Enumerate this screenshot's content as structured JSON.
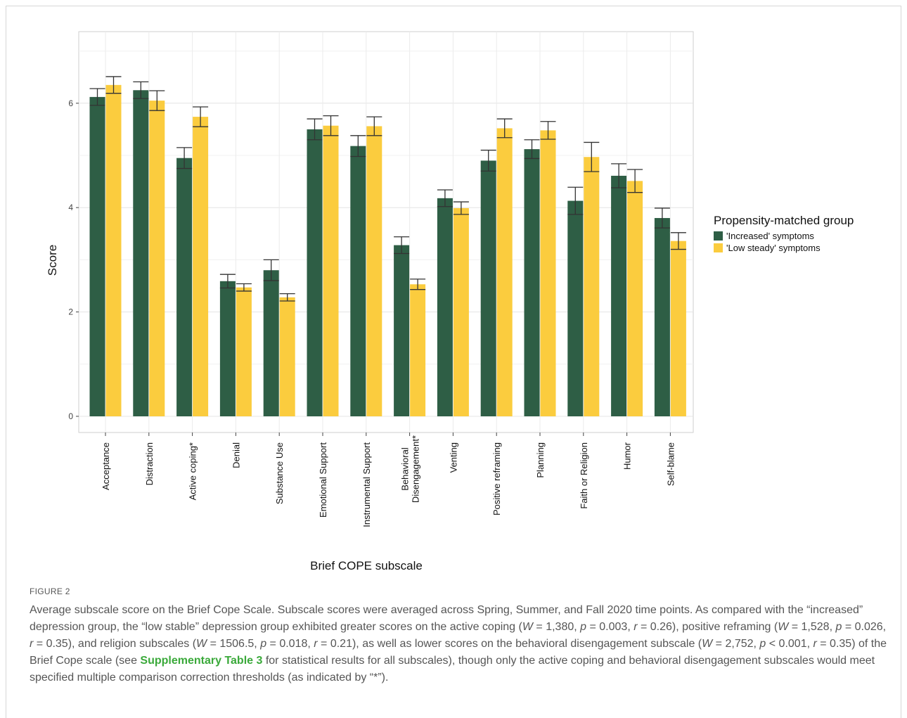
{
  "chart_data": {
    "type": "bar",
    "title": "",
    "xlabel": "Brief COPE subscale",
    "ylabel": "Score",
    "ylim": [
      0,
      7.3
    ],
    "yticks": [
      0,
      2,
      4,
      6
    ],
    "grid": true,
    "legend_position": "right",
    "legend_title": "Propensity-matched group",
    "categories": [
      "Acceptance",
      "Distraction",
      "Active coping*",
      "Denial",
      "Substance Use",
      "Emotional Support",
      "Instrumental Support",
      "Behavioral\nDisengagement*",
      "Venting",
      "Positive reframing",
      "Planning",
      "Faith or Religion",
      "Humor",
      "Self-blame"
    ],
    "series": [
      {
        "name": "'Increased' symptoms",
        "color": "#2e5e45",
        "values": [
          6.12,
          6.25,
          4.95,
          2.59,
          2.8,
          5.5,
          5.18,
          3.28,
          4.18,
          4.9,
          5.12,
          4.13,
          4.61,
          3.8
        ],
        "error": [
          0.16,
          0.16,
          0.2,
          0.13,
          0.2,
          0.2,
          0.2,
          0.16,
          0.16,
          0.2,
          0.18,
          0.26,
          0.23,
          0.19
        ]
      },
      {
        "name": "'Low steady' symptoms",
        "color": "#fbcc3e",
        "values": [
          6.35,
          6.05,
          5.74,
          2.47,
          2.28,
          5.57,
          5.56,
          2.53,
          3.99,
          5.52,
          5.48,
          4.97,
          4.51,
          3.36
        ],
        "error": [
          0.16,
          0.19,
          0.19,
          0.07,
          0.07,
          0.19,
          0.18,
          0.1,
          0.12,
          0.18,
          0.17,
          0.28,
          0.22,
          0.16
        ]
      }
    ]
  },
  "caption": {
    "figure_label": "FIGURE 2",
    "p1": "Average subscale score on the Brief Cope Scale. Subscale scores were averaged across Spring, Summer, and Fall 2020 time points. As compared with the “increased” depression group, the “low stable” depression group exhibited greater scores on the active coping (",
    "W": "W",
    "p": "p",
    "r": "r",
    "s1": " = 1,380, ",
    "s2": " = 0.003, ",
    "s3": " = 0.26), positive reframing (",
    "s4": " = 1,528, ",
    "s5": " = 0.026, ",
    "s6": " = 0.35), and religion subscales (",
    "s7": " = 1506.5, ",
    "s8": " = 0.018, ",
    "s9": " = 0.21), as well as lower scores on the behavioral disengagement subscale (",
    "s10": " = 2,752, ",
    "s11": " < 0.001, ",
    "s12": " = 0.35) of the Brief Cope scale (see ",
    "link": "Supplementary Table 3",
    "s13": " for statistical results for all subscales), though only the active coping and behavioral disengagement subscales would meet specified multiple comparison correction thresholds (as indicated by “*”)."
  }
}
